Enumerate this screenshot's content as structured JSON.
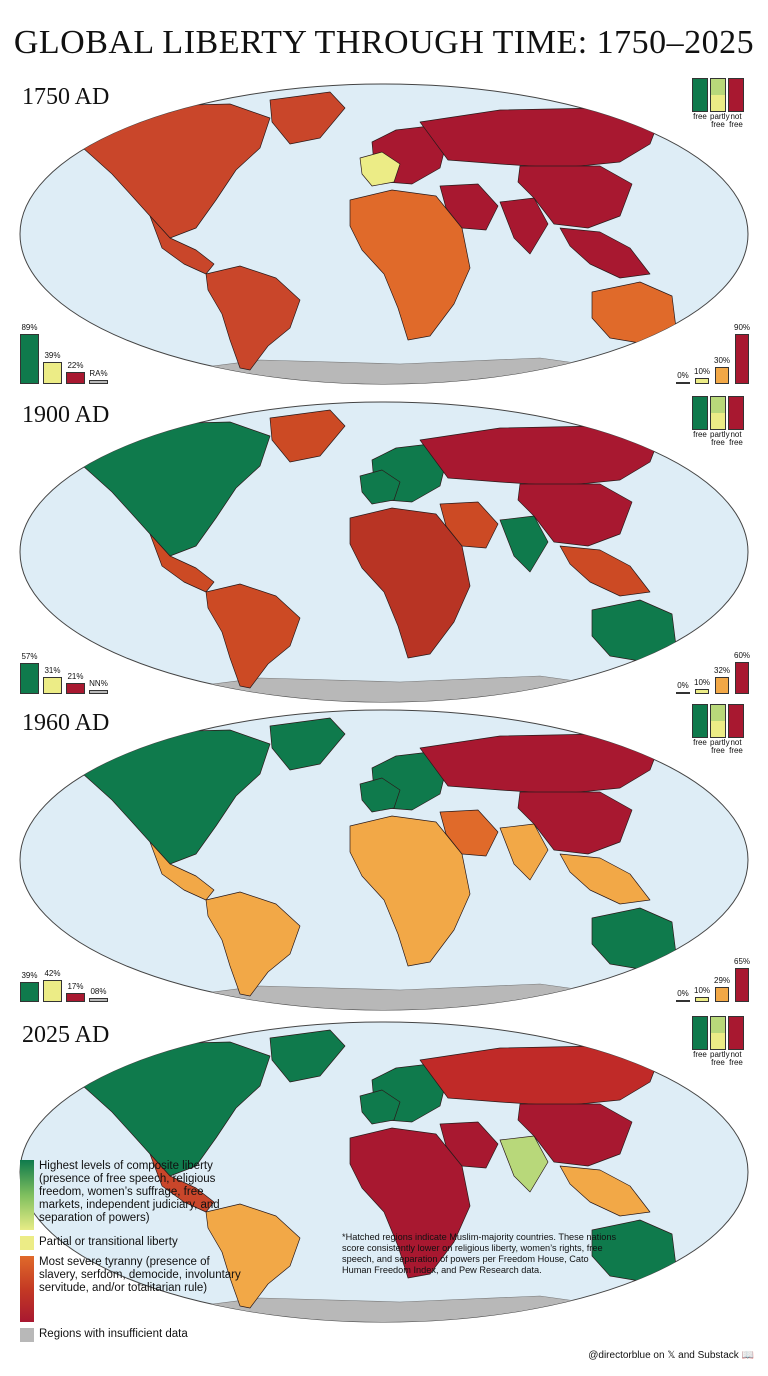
{
  "title": "GLOBAL LIBERTY THROUGH TIME: 1750–2025",
  "colors": {
    "free": "#0f7a4c",
    "free_mid": "#3c9a5e",
    "partly_light": "#b8d87a",
    "partly": "#ecec86",
    "orange_light": "#f2a847",
    "orange": "#e06a2a",
    "red_orange": "#cc3a20",
    "not_free": "#a81830",
    "ocean": "#deedf6",
    "antarctica": "#b8b8b8"
  },
  "legend_keys": {
    "free_label": "free",
    "partly_label": "partly free",
    "not_label": "not free"
  },
  "panels": [
    {
      "year": "1750 AD",
      "left_bars": [
        {
          "label": "89%",
          "value": 89,
          "color": "#0f7a4c"
        },
        {
          "label": "39%",
          "value": 39,
          "color": "#ecec86"
        },
        {
          "label": "22%",
          "value": 22,
          "color": "#a81830"
        },
        {
          "label": "RA%",
          "value": 8,
          "color": "#b8b8b8"
        }
      ],
      "right_bars": [
        {
          "label": "0%",
          "value": 0,
          "color": "#0f7a4c"
        },
        {
          "label": "10%",
          "value": 10,
          "color": "#ecec86"
        },
        {
          "label": "30%",
          "value": 30,
          "color": "#f2a847"
        },
        {
          "label": "90%",
          "value": 90,
          "color": "#a81830"
        }
      ]
    },
    {
      "year": "1900 AD",
      "left_bars": [
        {
          "label": "57%",
          "value": 57,
          "color": "#0f7a4c"
        },
        {
          "label": "31%",
          "value": 31,
          "color": "#ecec86"
        },
        {
          "label": "21%",
          "value": 21,
          "color": "#a81830"
        },
        {
          "label": "NN%",
          "value": 8,
          "color": "#b8b8b8"
        }
      ],
      "right_bars": [
        {
          "label": "0%",
          "value": 0,
          "color": "#0f7a4c"
        },
        {
          "label": "10%",
          "value": 10,
          "color": "#ecec86"
        },
        {
          "label": "32%",
          "value": 32,
          "color": "#f2a847"
        },
        {
          "label": "60%",
          "value": 60,
          "color": "#a81830"
        }
      ]
    },
    {
      "year": "1960 AD",
      "left_bars": [
        {
          "label": "39%",
          "value": 39,
          "color": "#0f7a4c"
        },
        {
          "label": "42%",
          "value": 42,
          "color": "#ecec86"
        },
        {
          "label": "17%",
          "value": 17,
          "color": "#a81830"
        },
        {
          "label": "08%",
          "value": 8,
          "color": "#b8b8b8"
        }
      ],
      "right_bars": [
        {
          "label": "0%",
          "value": 0,
          "color": "#0f7a4c"
        },
        {
          "label": "10%",
          "value": 10,
          "color": "#ecec86"
        },
        {
          "label": "29%",
          "value": 29,
          "color": "#f2a847"
        },
        {
          "label": "65%",
          "value": 65,
          "color": "#a81830"
        }
      ]
    },
    {
      "year": "2025 AD",
      "left_bars": [],
      "right_bars": []
    }
  ],
  "legend": [
    {
      "text": "Highest levels of composite liberty (presence of free speech, religious freedom, women’s suffrage, free markets, independent judiciary, and separation of powers)",
      "swatch": "gradient-green"
    },
    {
      "text": "Partial or transitional liberty",
      "swatch": "yellow"
    },
    {
      "text": "Most severe tyranny (presence of slavery, serfdom, democide, involuntary servitude, and/or totalitarian rule)",
      "swatch": "gradient-red"
    },
    {
      "text": "Regions with insufficient data",
      "swatch": "gray"
    }
  ],
  "note": "*Hatched regions indicate Muslim-majority countries. These nations score consistently lower on religious liberty, women’s rights, free speech, and separation of powers per Freedom House, Cato Human Freedom Index, and Pew Research data.",
  "credit": "@directorblue on 𝕏 and Substack 📖",
  "maps": [
    {
      "ocean": "#deedf6",
      "north_america": "#c9462a",
      "greenland": "#c9462a",
      "central_america": "#c9462a",
      "south_america": "#c9462a",
      "europe": "#a81830",
      "western_europe": "#ecec86",
      "russia": "#a81830",
      "africa": "#e06a2a",
      "middle_east": "#a81830",
      "india": "#a81830",
      "east_asia": "#a81830",
      "southeast_asia": "#a81830",
      "australia": "#e06a2a",
      "new_zealand": "#3c9a5e"
    },
    {
      "ocean": "#deedf6",
      "north_america": "#0f7a4c",
      "greenland": "#cc4a24",
      "central_america": "#cc4a24",
      "south_america": "#cc4a24",
      "europe": "#0f7a4c",
      "western_europe": "#0f7a4c",
      "russia": "#a81830",
      "africa": "#b83424",
      "middle_east": "#cc4a24",
      "india": "#0f7a4c",
      "east_asia": "#a81830",
      "southeast_asia": "#cc4a24",
      "australia": "#0f7a4c",
      "new_zealand": "#0f7a4c"
    },
    {
      "ocean": "#deedf6",
      "north_america": "#0f7a4c",
      "greenland": "#0f7a4c",
      "central_america": "#f2a847",
      "south_america": "#f2a847",
      "europe": "#0f7a4c",
      "western_europe": "#0f7a4c",
      "russia": "#a81830",
      "africa": "#f2a847",
      "middle_east": "#e06a2a",
      "india": "#f2a847",
      "east_asia": "#a81830",
      "southeast_asia": "#f2a847",
      "australia": "#0f7a4c",
      "new_zealand": "#0f7a4c"
    },
    {
      "ocean": "#deedf6",
      "north_america": "#0f7a4c",
      "greenland": "#0f7a4c",
      "central_america": "#c9462a",
      "south_america": "#f2a847",
      "europe": "#0f7a4c",
      "western_europe": "#0f7a4c",
      "russia": "#c02a28",
      "africa": "#a81830",
      "middle_east": "#a81830",
      "india": "#b8d87a",
      "east_asia": "#a81830",
      "southeast_asia": "#f2a847",
      "australia": "#0f7a4c",
      "new_zealand": "#0f7a4c"
    }
  ]
}
